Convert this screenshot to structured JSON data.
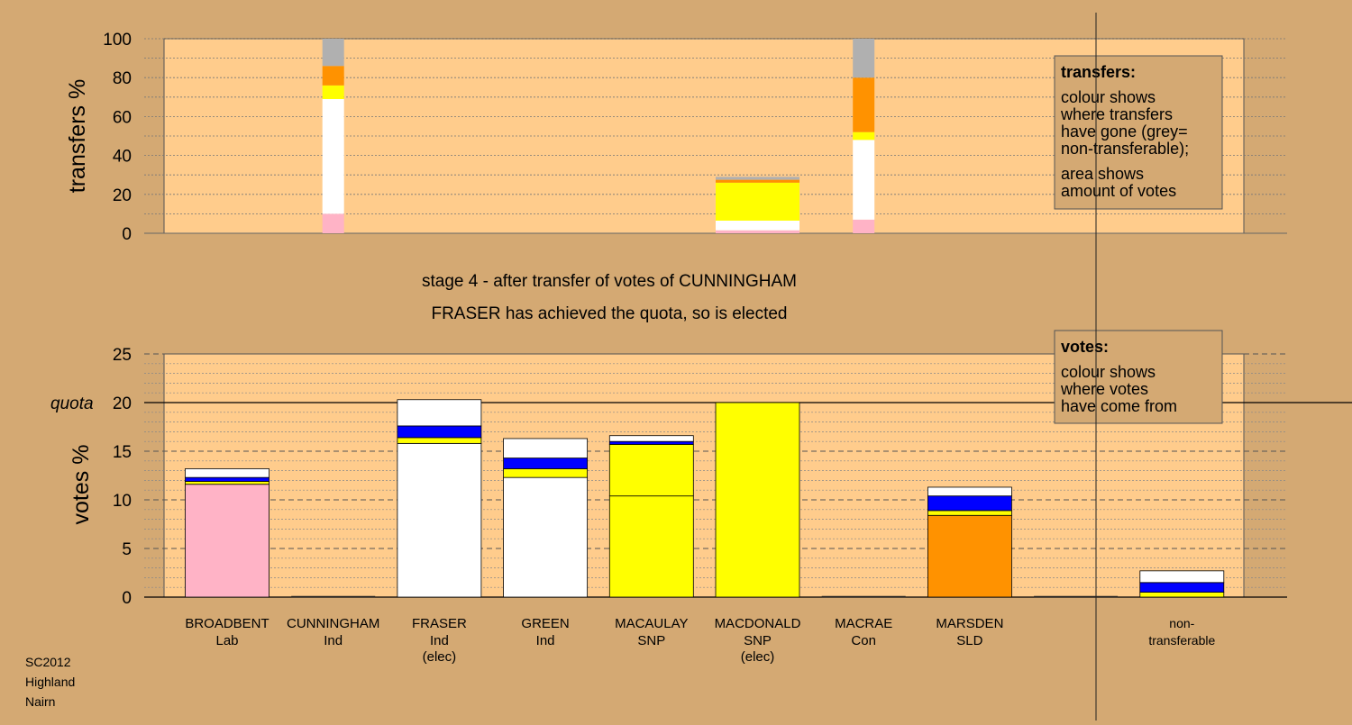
{
  "colors": {
    "background": "#d4a973",
    "plot_bg": "#ffcc8c",
    "Lab": "#ffb3c6",
    "Ind": "#ffffff",
    "SNP": "#ffff00",
    "Con": "#0000ff",
    "SLD": "#ff9200",
    "nontransferable": "#b0b0b0"
  },
  "chart_data": [
    {
      "type": "bar",
      "title": "stage 4 - after transfer of votes of CUNNINGHAM",
      "subtitle": "FRASER has achieved the quota, so is elected",
      "xlabel": "",
      "ylabel": "transfers %",
      "ylim": [
        0,
        100
      ],
      "yticks": [
        0,
        20,
        40,
        60,
        80,
        100
      ],
      "grid": true,
      "categories": [
        "BROADBENT Lab",
        "CUNNINGHAM Ind",
        "FRASER Ind (elec)",
        "GREEN Ind",
        "MACAULAY SNP",
        "MACDONALD SNP (elec)",
        "MACRAE Con",
        "MARSDEN SLD",
        "non-transferable"
      ],
      "stacks": [
        {
          "category": "CUNNINGHAM Ind",
          "segments": [
            {
              "party": "Lab",
              "value": 10
            },
            {
              "party": "Ind",
              "value": 59
            },
            {
              "party": "SNP",
              "value": 7
            },
            {
              "party": "SLD",
              "value": 10
            },
            {
              "party": "nontransferable",
              "value": 14
            }
          ]
        },
        {
          "category": "MACDONALD SNP (elec)",
          "segments": [
            {
              "party": "Lab",
              "value": 1.5
            },
            {
              "party": "Ind",
              "value": 5
            },
            {
              "party": "SNP",
              "value": 19.5
            },
            {
              "party": "SLD",
              "value": 1.5
            },
            {
              "party": "nontransferable",
              "value": 1.5
            }
          ]
        },
        {
          "category": "MACRAE Con",
          "segments": [
            {
              "party": "Lab",
              "value": 7
            },
            {
              "party": "Ind",
              "value": 41
            },
            {
              "party": "SNP",
              "value": 4
            },
            {
              "party": "SLD",
              "value": 28
            },
            {
              "party": "nontransferable",
              "value": 20
            }
          ]
        }
      ],
      "legend_box": {
        "heading": "transfers:",
        "lines_1": [
          "colour shows",
          "where transfers",
          "have gone (grey=",
          "non-transferable);"
        ],
        "lines_2": [
          "area shows",
          "amount of votes"
        ]
      }
    },
    {
      "type": "bar",
      "xlabel": "",
      "ylabel": "votes %",
      "ylim": [
        0,
        25
      ],
      "yticks": [
        0,
        5,
        10,
        15,
        20,
        25
      ],
      "quota": 20,
      "quota_label": "quota",
      "grid": true,
      "categories": [
        {
          "name": "BROADBENT",
          "party": "Lab",
          "status": ""
        },
        {
          "name": "CUNNINGHAM",
          "party": "Ind",
          "status": ""
        },
        {
          "name": "FRASER",
          "party": "Ind",
          "status": "(elec)"
        },
        {
          "name": "GREEN",
          "party": "Ind",
          "status": ""
        },
        {
          "name": "MACAULAY",
          "party": "SNP",
          "status": ""
        },
        {
          "name": "MACDONALD",
          "party": "SNP",
          "status": "(elec)"
        },
        {
          "name": "MACRAE",
          "party": "Con",
          "status": ""
        },
        {
          "name": "MARSDEN",
          "party": "SLD",
          "status": ""
        },
        {
          "name": "",
          "party": "",
          "status": ""
        },
        {
          "name": "non-",
          "party": "transferable",
          "status": ""
        }
      ],
      "stacks": [
        {
          "category": "BROADBENT",
          "segments": [
            {
              "party": "Lab",
              "value": 11.6
            },
            {
              "party": "SNP",
              "value": 0.3
            },
            {
              "party": "Con",
              "value": 0.4
            },
            {
              "party": "Ind",
              "value": 0.9
            }
          ]
        },
        {
          "category": "CUNNINGHAM",
          "segments": []
        },
        {
          "category": "FRASER",
          "segments": [
            {
              "party": "Ind",
              "value": 15.8
            },
            {
              "party": "SNP",
              "value": 0.6
            },
            {
              "party": "Con",
              "value": 1.2
            },
            {
              "party": "Ind",
              "value": 2.7
            }
          ]
        },
        {
          "category": "GREEN",
          "segments": [
            {
              "party": "Ind",
              "value": 12.3
            },
            {
              "party": "SNP",
              "value": 0.9
            },
            {
              "party": "Con",
              "value": 1.1
            },
            {
              "party": "Ind",
              "value": 2.0
            }
          ]
        },
        {
          "category": "MACAULAY",
          "segments": [
            {
              "party": "SNP",
              "value": 10.4
            },
            {
              "party": "SNP",
              "value": 5.3
            },
            {
              "party": "Con",
              "value": 0.3
            },
            {
              "party": "Ind",
              "value": 0.6
            }
          ]
        },
        {
          "category": "MACDONALD",
          "segments": [
            {
              "party": "SNP",
              "value": 20.0
            }
          ]
        },
        {
          "category": "MACRAE",
          "segments": []
        },
        {
          "category": "MARSDEN",
          "segments": [
            {
              "party": "SLD",
              "value": 8.4
            },
            {
              "party": "SNP",
              "value": 0.5
            },
            {
              "party": "Con",
              "value": 1.5
            },
            {
              "party": "Ind",
              "value": 0.9
            }
          ]
        },
        {
          "category": "",
          "segments": []
        },
        {
          "category": "non-transferable",
          "segments": [
            {
              "party": "SNP",
              "value": 0.5
            },
            {
              "party": "Con",
              "value": 1.0
            },
            {
              "party": "Ind",
              "value": 1.2
            }
          ]
        }
      ],
      "legend_box": {
        "heading": "votes:",
        "lines_1": [
          "colour shows",
          "where votes",
          "have come from"
        ]
      }
    }
  ],
  "footer": {
    "line1": "SC2012",
    "line2": "Highland",
    "line3": "Nairn"
  }
}
